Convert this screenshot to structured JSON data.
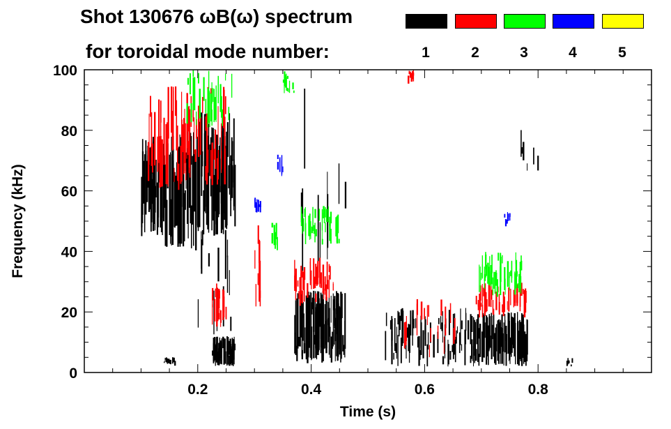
{
  "chart_data": {
    "type": "heatmap",
    "title": "Shot 130676 ωB(ω) spectrum",
    "subtitle": "for toroidal mode number:",
    "xlabel": "Time (s)",
    "ylabel": "Frequency (kHz)",
    "xlim": [
      0,
      1.0
    ],
    "ylim": [
      0,
      100
    ],
    "xticks": [
      "0.2",
      "0.4",
      "0.6",
      "0.8"
    ],
    "xtick_values": [
      0.2,
      0.4,
      0.6,
      0.8
    ],
    "yticks": [
      "0",
      "20",
      "40",
      "60",
      "80",
      "100"
    ],
    "ytick_values": [
      0,
      20,
      40,
      60,
      80,
      100
    ],
    "legend": [
      {
        "label": "1",
        "color": "#000000"
      },
      {
        "label": "2",
        "color": "#ff0000"
      },
      {
        "label": "3",
        "color": "#00ff00"
      },
      {
        "label": "4",
        "color": "#0000ff"
      },
      {
        "label": "5",
        "color": "#ffff00"
      }
    ],
    "regions": [
      {
        "mode": 1,
        "t": [
          0.1,
          0.14
        ],
        "f": [
          45,
          78
        ],
        "density": 0.8
      },
      {
        "mode": 1,
        "t": [
          0.14,
          0.2
        ],
        "f": [
          40,
          80
        ],
        "density": 0.7
      },
      {
        "mode": 1,
        "t": [
          0.2,
          0.265
        ],
        "f": [
          45,
          86
        ],
        "density": 0.8
      },
      {
        "mode": 1,
        "t": [
          0.2,
          0.265
        ],
        "f": [
          10,
          50
        ],
        "density": 0.15
      },
      {
        "mode": 1,
        "t": [
          0.225,
          0.265
        ],
        "f": [
          2,
          12
        ],
        "density": 0.9
      },
      {
        "mode": 1,
        "t": [
          0.14,
          0.16
        ],
        "f": [
          2,
          5
        ],
        "density": 0.6
      },
      {
        "mode": 1,
        "t": [
          0.37,
          0.46
        ],
        "f": [
          3,
          27
        ],
        "density": 0.9
      },
      {
        "mode": 1,
        "t": [
          0.38,
          0.47
        ],
        "f": [
          27,
          95
        ],
        "density": 0.05
      },
      {
        "mode": 1,
        "t": [
          0.53,
          0.68
        ],
        "f": [
          2,
          22
        ],
        "density": 0.35
      },
      {
        "mode": 1,
        "t": [
          0.68,
          0.78
        ],
        "f": [
          2,
          20
        ],
        "density": 0.7
      },
      {
        "mode": 1,
        "t": [
          0.76,
          0.8
        ],
        "f": [
          62,
          82
        ],
        "density": 0.08
      },
      {
        "mode": 1,
        "t": [
          0.85,
          0.86
        ],
        "f": [
          2,
          5
        ],
        "density": 0.5
      },
      {
        "mode": 2,
        "t": [
          0.11,
          0.25
        ],
        "f": [
          60,
          95
        ],
        "density": 0.35
      },
      {
        "mode": 2,
        "t": [
          0.225,
          0.25
        ],
        "f": [
          15,
          30
        ],
        "density": 0.5
      },
      {
        "mode": 2,
        "t": [
          0.3,
          0.31
        ],
        "f": [
          20,
          50
        ],
        "density": 0.5
      },
      {
        "mode": 2,
        "t": [
          0.37,
          0.44
        ],
        "f": [
          22,
          38
        ],
        "density": 0.4
      },
      {
        "mode": 2,
        "t": [
          0.56,
          0.66
        ],
        "f": [
          5,
          25
        ],
        "density": 0.15
      },
      {
        "mode": 2,
        "t": [
          0.69,
          0.78
        ],
        "f": [
          18,
          30
        ],
        "density": 0.5
      },
      {
        "mode": 2,
        "t": [
          0.57,
          0.58
        ],
        "f": [
          95,
          100
        ],
        "density": 0.5
      },
      {
        "mode": 3,
        "t": [
          0.18,
          0.26
        ],
        "f": [
          80,
          100
        ],
        "density": 0.3
      },
      {
        "mode": 3,
        "t": [
          0.33,
          0.34
        ],
        "f": [
          40,
          50
        ],
        "density": 0.5
      },
      {
        "mode": 3,
        "t": [
          0.35,
          0.37
        ],
        "f": [
          92,
          100
        ],
        "density": 0.6
      },
      {
        "mode": 3,
        "t": [
          0.38,
          0.45
        ],
        "f": [
          42,
          55
        ],
        "density": 0.35
      },
      {
        "mode": 3,
        "t": [
          0.69,
          0.77
        ],
        "f": [
          25,
          40
        ],
        "density": 0.4
      },
      {
        "mode": 4,
        "t": [
          0.34,
          0.35
        ],
        "f": [
          63,
          73
        ],
        "density": 0.5
      },
      {
        "mode": 4,
        "t": [
          0.3,
          0.31
        ],
        "f": [
          52,
          58
        ],
        "density": 0.5
      },
      {
        "mode": 4,
        "t": [
          0.74,
          0.75
        ],
        "f": [
          48,
          53
        ],
        "density": 0.5
      }
    ]
  }
}
